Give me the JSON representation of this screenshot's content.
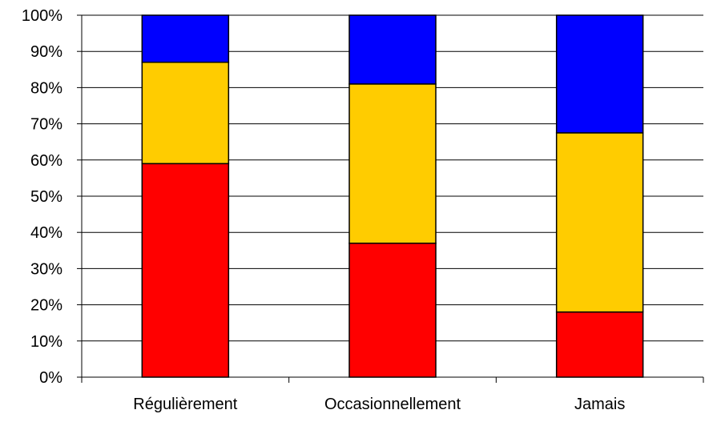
{
  "chart_data": {
    "type": "bar",
    "stacked": true,
    "percent_stacked": true,
    "categories": [
      "Régulièrement",
      "Occasionnellement",
      "Jamais"
    ],
    "series": [
      {
        "color": "#ff0000",
        "values": [
          59,
          37,
          18
        ]
      },
      {
        "color": "#ffcc00",
        "values": [
          28,
          44,
          49.5
        ]
      },
      {
        "color": "#0000ff",
        "values": [
          13,
          19,
          32.5
        ]
      }
    ],
    "y_ticks": [
      "0%",
      "10%",
      "20%",
      "30%",
      "40%",
      "50%",
      "60%",
      "70%",
      "80%",
      "90%",
      "100%"
    ],
    "ylim": [
      0,
      100
    ],
    "grid": true,
    "legend": "none",
    "title": "",
    "xlabel": "",
    "ylabel": ""
  }
}
